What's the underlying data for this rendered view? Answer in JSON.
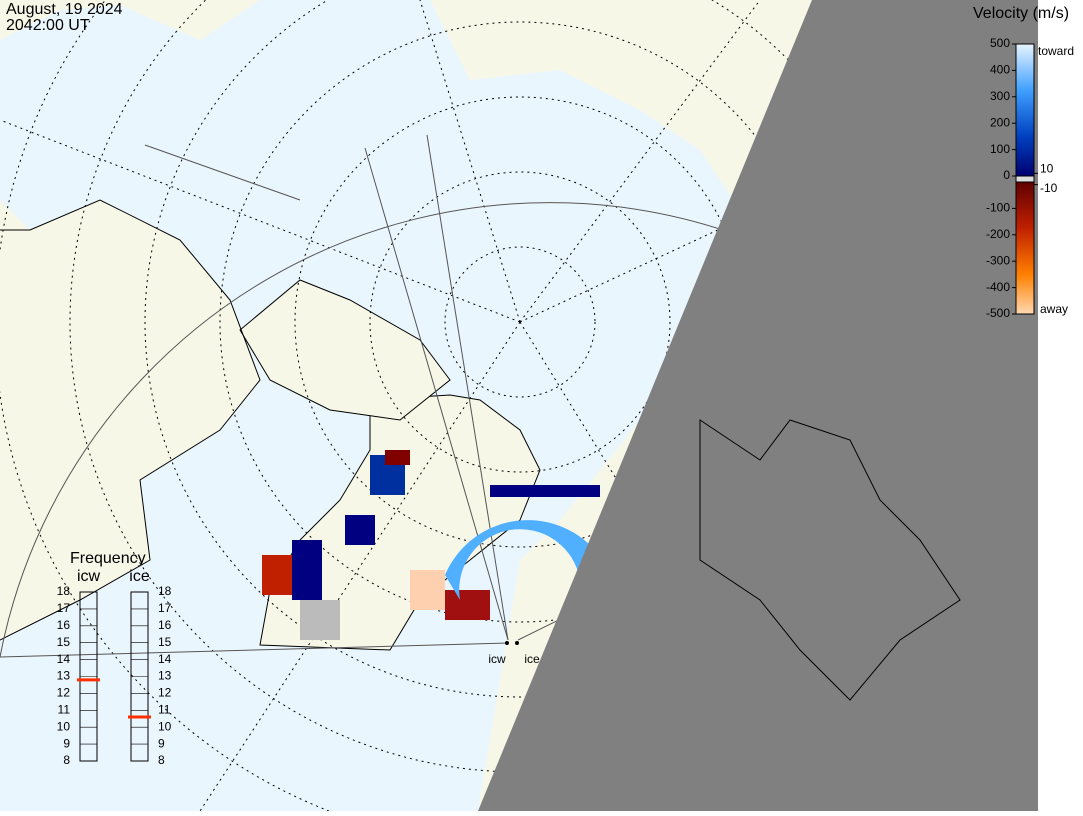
{
  "header": {
    "date": "August, 19 2024",
    "time": "2042:00 UT"
  },
  "velocity_scale": {
    "title": "Velocity (m/s)",
    "lim": [
      -500,
      500
    ],
    "ticks": [
      500,
      400,
      300,
      200,
      100,
      0,
      -100,
      -200,
      -300,
      -400,
      -500
    ],
    "threshold_ticks": [
      10,
      -10
    ],
    "toward_label": "toward",
    "away_label": "away"
  },
  "frequency": {
    "title": "Frequency",
    "lim": [
      8,
      18
    ],
    "radars": [
      {
        "name": "icw",
        "ticks": [
          18,
          17,
          16,
          15,
          14,
          13,
          12,
          11,
          10,
          9,
          8
        ],
        "value": 12.8
      },
      {
        "name": "ice",
        "ticks": [
          18,
          17,
          16,
          15,
          14,
          13,
          12,
          11,
          10,
          9,
          8
        ],
        "value": 10.6
      }
    ]
  },
  "radar_sites": [
    "icw",
    "ice"
  ]
}
